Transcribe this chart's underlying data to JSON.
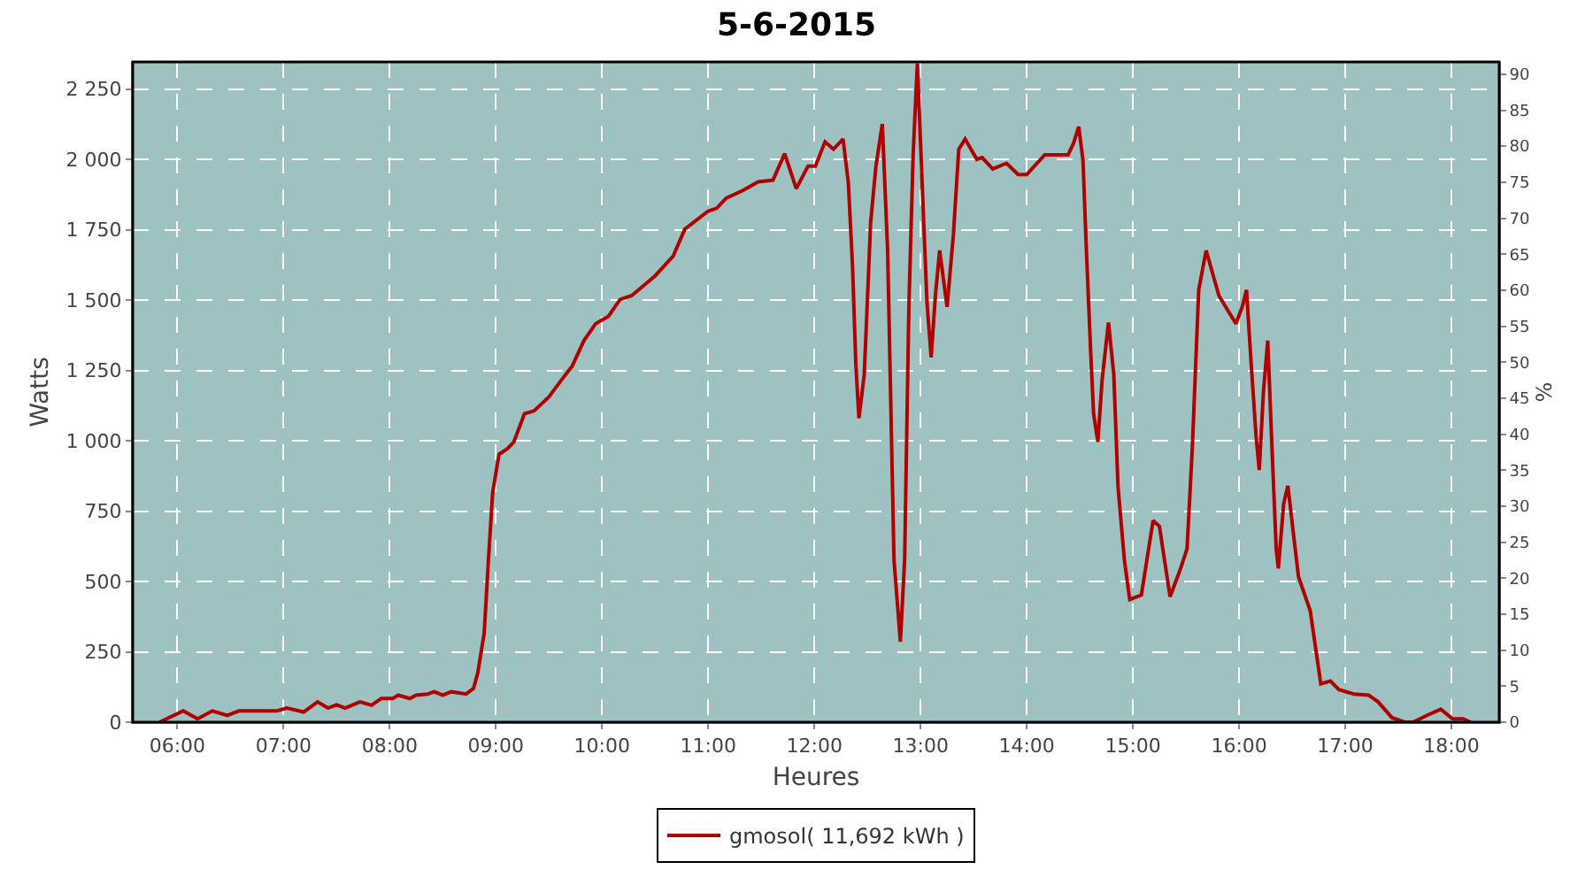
{
  "chart_data": {
    "type": "line",
    "title": "5-6-2015",
    "xlabel": "Heures",
    "ylabel": "Watts",
    "y2label": "%",
    "series": [
      {
        "name": "gmosol( 11,692 kWh )",
        "color": "#b00000",
        "x": [
          5.833,
          6.056,
          6.19,
          6.33,
          6.47,
          6.58,
          6.94,
          7.03,
          7.19,
          7.32,
          7.42,
          7.5,
          7.58,
          7.72,
          7.83,
          7.92,
          8.03,
          8.08,
          8.19,
          8.25,
          8.36,
          8.42,
          8.5,
          8.58,
          8.72,
          8.79,
          8.83,
          8.89,
          8.93,
          8.97,
          9.03,
          9.11,
          9.17,
          9.27,
          9.36,
          9.5,
          9.61,
          9.72,
          9.83,
          9.94,
          10.06,
          10.17,
          10.28,
          10.5,
          10.67,
          10.78,
          11.0,
          11.08,
          11.17,
          11.33,
          11.47,
          11.61,
          11.72,
          11.83,
          11.94,
          12.01,
          12.1,
          12.18,
          12.27,
          12.32,
          12.36,
          12.39,
          12.42,
          12.47,
          12.53,
          12.58,
          12.64,
          12.69,
          12.75,
          12.81,
          12.85,
          12.89,
          12.93,
          12.97,
          13.03,
          13.06,
          13.1,
          13.14,
          13.18,
          13.25,
          13.31,
          13.36,
          13.42,
          13.53,
          13.58,
          13.68,
          13.81,
          13.92,
          14.0,
          14.17,
          14.39,
          14.44,
          14.49,
          14.53,
          14.56,
          14.6,
          14.63,
          14.67,
          14.71,
          14.77,
          14.82,
          14.86,
          14.92,
          14.97,
          15.08,
          15.19,
          15.25,
          15.35,
          15.44,
          15.51,
          15.56,
          15.62,
          15.69,
          15.81,
          15.97,
          16.03,
          16.07,
          16.11,
          16.16,
          16.19,
          16.23,
          16.27,
          16.31,
          16.35,
          16.37,
          16.42,
          16.46,
          16.51,
          16.56,
          16.67,
          16.77,
          16.86,
          16.94,
          17.08,
          17.22,
          17.31,
          17.44,
          17.56,
          17.64,
          17.78,
          17.9,
          18.01,
          18.11,
          18.18
        ],
        "values": [
          0,
          40,
          12,
          40,
          24,
          40,
          40,
          50,
          36,
          72,
          50,
          62,
          50,
          72,
          60,
          84,
          84,
          96,
          84,
          96,
          100,
          108,
          96,
          108,
          100,
          120,
          176,
          316,
          576,
          816,
          952,
          972,
          996,
          1096,
          1106,
          1156,
          1212,
          1266,
          1356,
          1416,
          1442,
          1502,
          1516,
          1586,
          1656,
          1752,
          1816,
          1826,
          1862,
          1890,
          1920,
          1926,
          2020,
          1896,
          1976,
          1976,
          2062,
          2036,
          2072,
          1916,
          1616,
          1276,
          1080,
          1236,
          1776,
          1976,
          2126,
          1676,
          576,
          286,
          576,
          1476,
          2016,
          2340,
          1776,
          1496,
          1296,
          1516,
          1676,
          1476,
          1736,
          2036,
          2072,
          2000,
          2006,
          1966,
          1986,
          1946,
          1946,
          2016,
          2016,
          2056,
          2116,
          1996,
          1696,
          1336,
          1096,
          996,
          1216,
          1420,
          1236,
          836,
          576,
          436,
          452,
          716,
          696,
          446,
          536,
          616,
          976,
          1536,
          1676,
          1516,
          1416,
          1476,
          1536,
          1296,
          1016,
          896,
          1176,
          1356,
          976,
          616,
          546,
          776,
          840,
          676,
          516,
          396,
          136,
          146,
          116,
          100,
          96,
          72,
          16,
          0,
          0,
          26,
          46,
          12,
          12,
          0
        ]
      }
    ],
    "xlim": [
      5.58,
      18.45
    ],
    "xticks": [
      {
        "value": 6,
        "label": "06:00"
      },
      {
        "value": 7,
        "label": "07:00"
      },
      {
        "value": 8,
        "label": "08:00"
      },
      {
        "value": 9,
        "label": "09:00"
      },
      {
        "value": 10,
        "label": "10:00"
      },
      {
        "value": 11,
        "label": "11:00"
      },
      {
        "value": 12,
        "label": "12:00"
      },
      {
        "value": 13,
        "label": "13:00"
      },
      {
        "value": 14,
        "label": "14:00"
      },
      {
        "value": 15,
        "label": "15:00"
      },
      {
        "value": 16,
        "label": "16:00"
      },
      {
        "value": 17,
        "label": "17:00"
      },
      {
        "value": 18,
        "label": "18:00"
      }
    ],
    "ylim": [
      0,
      2346
    ],
    "yticks": [
      0,
      250,
      500,
      750,
      {
        "value": 1000,
        "label": "1 000"
      },
      {
        "value": 1250,
        "label": "1 250"
      },
      {
        "value": 1500,
        "label": "1 500"
      },
      {
        "value": 1750,
        "label": "1 750"
      },
      {
        "value": 2000,
        "label": "2 000"
      },
      {
        "value": 2250,
        "label": "2 250"
      }
    ],
    "y2lim": [
      0,
      91.7
    ],
    "y2ticks": [
      0,
      5,
      10,
      15,
      20,
      25,
      30,
      35,
      40,
      45,
      50,
      55,
      60,
      65,
      70,
      75,
      80,
      85,
      90
    ],
    "grid": true,
    "legend": "bottom",
    "line_style": "solid",
    "marker": "none"
  }
}
